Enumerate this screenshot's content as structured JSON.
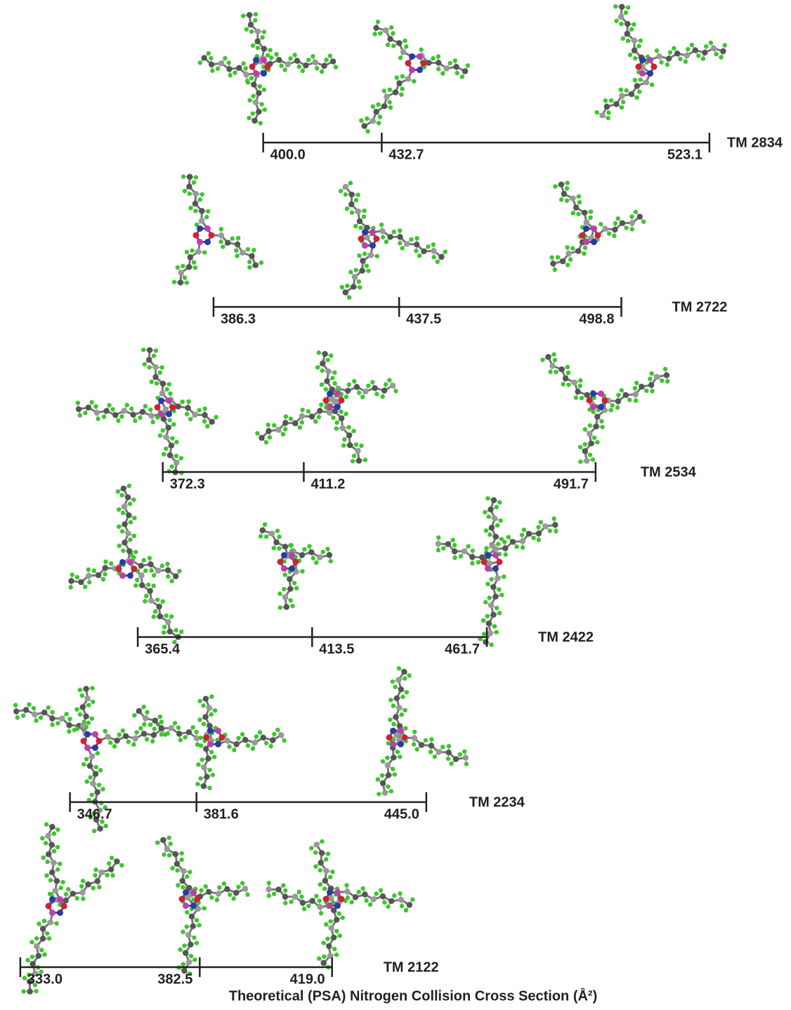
{
  "chart_data": {
    "type": "scale-bars",
    "xlabel": "Theoretical (PSA) Nitrogen Collision Cross Section (Å²)",
    "xlim": [
      327.4,
      545.6
    ],
    "series": [
      {
        "name": "TM 2834",
        "values": [
          400.0,
          432.7,
          523.1
        ],
        "value_labels": [
          "400.0",
          "432.7",
          "523.1"
        ]
      },
      {
        "name": "TM 2722",
        "values": [
          386.3,
          437.5,
          498.8
        ],
        "value_labels": [
          "386.3",
          "437.5",
          "498.8"
        ]
      },
      {
        "name": "TM 2534",
        "values": [
          372.3,
          411.2,
          491.7
        ],
        "value_labels": [
          "372.3",
          "411.2",
          "491.7"
        ]
      },
      {
        "name": "TM 2422",
        "values": [
          365.4,
          413.5,
          461.7
        ],
        "value_labels": [
          "365.4",
          "413.5",
          "461.7"
        ]
      },
      {
        "name": "TM 2234",
        "values": [
          346.7,
          381.6,
          445.0
        ],
        "value_labels": [
          "346.7",
          "381.6",
          "445.0"
        ]
      },
      {
        "name": "TM 2122",
        "values": [
          333.0,
          382.5,
          419.0
        ],
        "value_labels": [
          "333.0",
          "382.5",
          "419.0"
        ]
      }
    ]
  }
}
